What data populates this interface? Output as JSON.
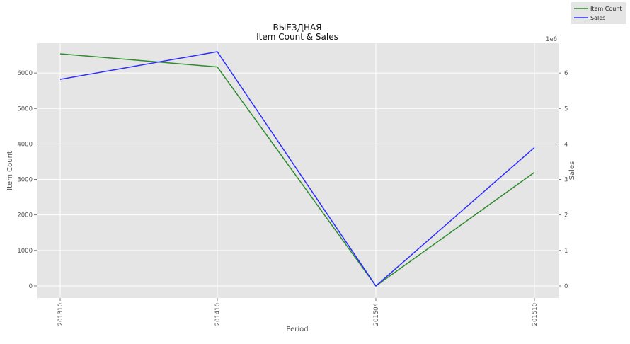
{
  "chart_data": {
    "type": "line",
    "title": "ВЫЕЗДНАЯ",
    "subtitle": "Item Count & Sales",
    "xlabel": "Period",
    "ylabel_left": "Item Count",
    "ylabel_right": "Sales",
    "right_axis_multiplier": "1e6",
    "categories": [
      "201310",
      "201410",
      "201504",
      "201510"
    ],
    "series": [
      {
        "name": "Item Count",
        "axis": "left",
        "color": "#2e8b2e",
        "values": [
          6540,
          6170,
          0,
          3200
        ]
      },
      {
        "name": "Sales",
        "axis": "right",
        "color": "#2c2cff",
        "values": [
          5.82,
          6.6,
          0,
          3.9
        ]
      }
    ],
    "ylim_left": [
      -340,
      6840
    ],
    "ylim_right": [
      -0.34,
      6.84
    ],
    "yticks_left": [
      "0",
      "1000",
      "2000",
      "3000",
      "4000",
      "5000",
      "6000"
    ],
    "yticks_right": [
      "0",
      "1",
      "2",
      "3",
      "4",
      "5",
      "6"
    ],
    "grid": true,
    "legend_position": "top-right"
  }
}
